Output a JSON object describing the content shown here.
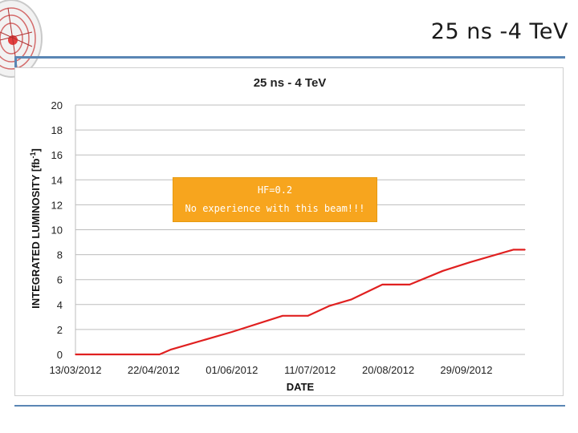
{
  "slide": {
    "title": "25 ns -4 TeV"
  },
  "annotation": {
    "line1": "HF=0.2",
    "line2": "No experience with this beam!!!"
  },
  "chart_data": {
    "type": "line",
    "title": "25 ns - 4 TeV",
    "xlabel": "DATE",
    "ylabel": "INTEGRATED LUMINOSITY [fb",
    "ylabel_sup": "-1",
    "ylabel_end": "]",
    "ylim": [
      0,
      20
    ],
    "yticks": [
      "0",
      "2",
      "4",
      "6",
      "8",
      "10",
      "12",
      "14",
      "16",
      "18",
      "20"
    ],
    "xlim": [
      "2012-03-13",
      "2012-10-29"
    ],
    "xticks": [
      {
        "date": "2012-03-13",
        "label": "13/03/2012"
      },
      {
        "date": "2012-04-22",
        "label": "22/04/2012"
      },
      {
        "date": "2012-06-01",
        "label": "01/06/2012"
      },
      {
        "date": "2012-07-11",
        "label": "11/07/2012"
      },
      {
        "date": "2012-08-20",
        "label": "20/08/2012"
      },
      {
        "date": "2012-09-29",
        "label": "29/09/2012"
      }
    ],
    "grid": true,
    "series": [
      {
        "color": "#e02020",
        "points": [
          {
            "x": "2012-03-13",
            "y": 0
          },
          {
            "x": "2012-04-25",
            "y": 0
          },
          {
            "x": "2012-05-01",
            "y": 0.4
          },
          {
            "x": "2012-06-01",
            "y": 1.8
          },
          {
            "x": "2012-06-27",
            "y": 3.1
          },
          {
            "x": "2012-07-10",
            "y": 3.1
          },
          {
            "x": "2012-07-21",
            "y": 3.9
          },
          {
            "x": "2012-08-01",
            "y": 4.4
          },
          {
            "x": "2012-08-17",
            "y": 5.6
          },
          {
            "x": "2012-08-31",
            "y": 5.6
          },
          {
            "x": "2012-09-17",
            "y": 6.7
          },
          {
            "x": "2012-10-01",
            "y": 7.4
          },
          {
            "x": "2012-10-23",
            "y": 8.4
          },
          {
            "x": "2012-10-29",
            "y": 8.4
          }
        ]
      }
    ]
  },
  "colors": {
    "accent": "#5a86b4",
    "series": "#e02020",
    "annotation": "#f7a51e"
  }
}
